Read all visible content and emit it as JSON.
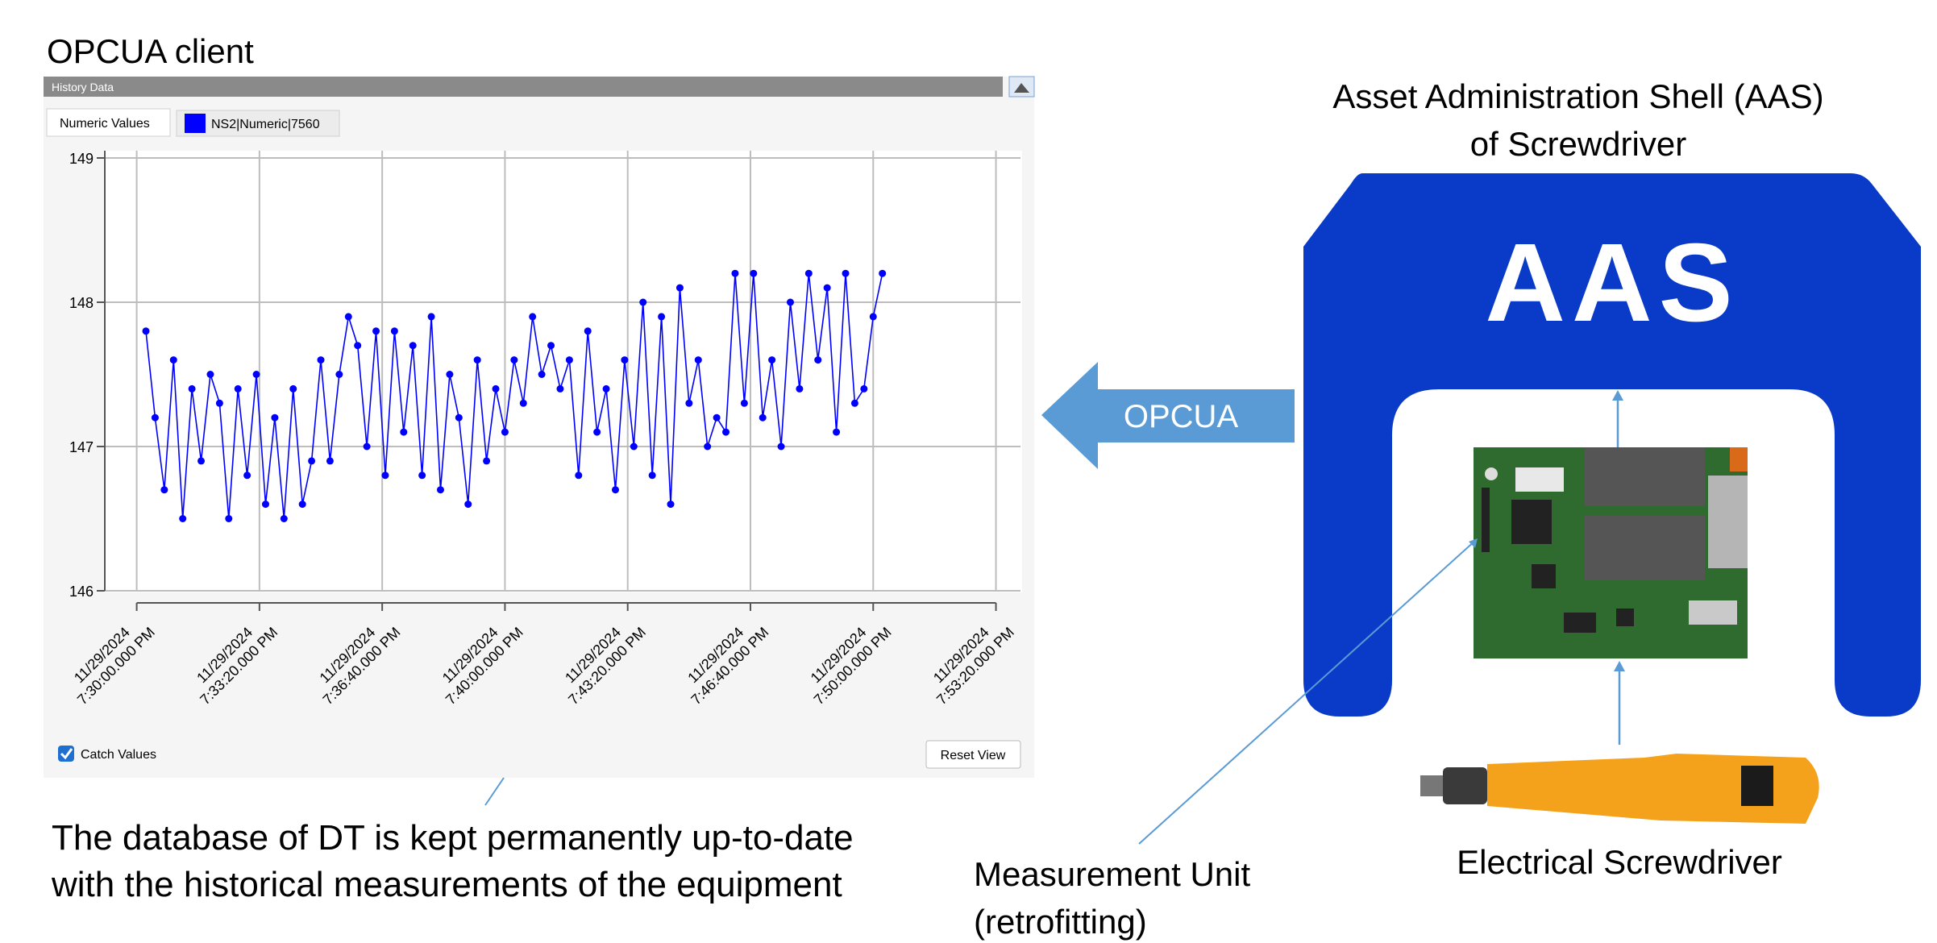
{
  "title": "OPCUA client",
  "history_panel": {
    "header": "History Data",
    "tab": "Numeric Values",
    "checkbox": "Catch Values",
    "button": "Reset View"
  },
  "chart_data": {
    "type": "line",
    "x": [
      "2024-11-29T19:30:15",
      "2024-11-29T19:30:30",
      "2024-11-29T19:30:45",
      "2024-11-29T19:31:00",
      "2024-11-29T19:31:15",
      "2024-11-29T19:31:30",
      "2024-11-29T19:31:45",
      "2024-11-29T19:32:00",
      "2024-11-29T19:32:15",
      "2024-11-29T19:32:30",
      "2024-11-29T19:32:45",
      "2024-11-29T19:33:00",
      "2024-11-29T19:33:15",
      "2024-11-29T19:33:30",
      "2024-11-29T19:33:45",
      "2024-11-29T19:34:00",
      "2024-11-29T19:34:15",
      "2024-11-29T19:34:30",
      "2024-11-29T19:34:45",
      "2024-11-29T19:35:00",
      "2024-11-29T19:35:15",
      "2024-11-29T19:35:30",
      "2024-11-29T19:35:45",
      "2024-11-29T19:36:00",
      "2024-11-29T19:36:15",
      "2024-11-29T19:36:30",
      "2024-11-29T19:36:45",
      "2024-11-29T19:37:00",
      "2024-11-29T19:37:15",
      "2024-11-29T19:37:30",
      "2024-11-29T19:37:45",
      "2024-11-29T19:38:00",
      "2024-11-29T19:38:15",
      "2024-11-29T19:38:30",
      "2024-11-29T19:38:45",
      "2024-11-29T19:39:00",
      "2024-11-29T19:39:15",
      "2024-11-29T19:39:30",
      "2024-11-29T19:39:45",
      "2024-11-29T19:40:00",
      "2024-11-29T19:40:15",
      "2024-11-29T19:40:30",
      "2024-11-29T19:40:45",
      "2024-11-29T19:41:00",
      "2024-11-29T19:41:15",
      "2024-11-29T19:41:30",
      "2024-11-29T19:41:45",
      "2024-11-29T19:42:00",
      "2024-11-29T19:42:15",
      "2024-11-29T19:42:30",
      "2024-11-29T19:42:45",
      "2024-11-29T19:43:00",
      "2024-11-29T19:43:15",
      "2024-11-29T19:43:30",
      "2024-11-29T19:43:45",
      "2024-11-29T19:44:00",
      "2024-11-29T19:44:15",
      "2024-11-29T19:44:30",
      "2024-11-29T19:44:45",
      "2024-11-29T19:45:00",
      "2024-11-29T19:45:15",
      "2024-11-29T19:45:30",
      "2024-11-29T19:45:45",
      "2024-11-29T19:46:00",
      "2024-11-29T19:46:15",
      "2024-11-29T19:46:30",
      "2024-11-29T19:46:45",
      "2024-11-29T19:47:00",
      "2024-11-29T19:47:15",
      "2024-11-29T19:47:30",
      "2024-11-29T19:47:45",
      "2024-11-29T19:48:00",
      "2024-11-29T19:48:15",
      "2024-11-29T19:48:30",
      "2024-11-29T19:48:45",
      "2024-11-29T19:49:00",
      "2024-11-29T19:49:15",
      "2024-11-29T19:49:30",
      "2024-11-29T19:49:45",
      "2024-11-29T19:50:00",
      "2024-11-29T19:50:15"
    ],
    "series": [
      {
        "name": "NS2|Numeric|7560",
        "color": "#0000ff",
        "values": [
          147.8,
          147.2,
          146.7,
          147.6,
          146.5,
          147.4,
          146.9,
          147.5,
          147.3,
          146.5,
          147.4,
          146.8,
          147.5,
          146.6,
          147.2,
          146.5,
          147.4,
          146.6,
          146.9,
          147.6,
          146.9,
          147.5,
          147.9,
          147.7,
          147.0,
          147.8,
          146.8,
          147.8,
          147.1,
          147.7,
          146.8,
          147.9,
          146.7,
          147.5,
          147.2,
          146.6,
          147.6,
          146.9,
          147.4,
          147.1,
          147.6,
          147.3,
          147.9,
          147.5,
          147.7,
          147.4,
          147.6,
          146.8,
          147.8,
          147.1,
          147.4,
          146.7,
          147.6,
          147.0,
          148.0,
          146.8,
          147.9,
          146.6,
          148.1,
          147.3,
          147.6,
          147.0,
          147.2,
          147.1,
          148.2,
          147.3,
          148.2,
          147.2,
          147.6,
          147.0,
          148.0,
          147.4,
          148.2,
          147.6,
          148.1,
          147.1,
          148.2,
          147.3,
          147.4,
          147.9,
          148.2
        ]
      }
    ],
    "xlim": [
      "2024-11-29T19:29:08",
      "2024-11-29T19:54:00"
    ],
    "xticks": [
      {
        "value": "2024-11-29T19:30:00",
        "label": "11/29/2024 7:30:00.000 PM"
      },
      {
        "value": "2024-11-29T19:33:20",
        "label": "11/29/2024 7:33:20.000 PM"
      },
      {
        "value": "2024-11-29T19:36:40",
        "label": "11/29/2024 7:36:40.000 PM"
      },
      {
        "value": "2024-11-29T19:40:00",
        "label": "11/29/2024 7:40:00.000 PM"
      },
      {
        "value": "2024-11-29T19:43:20",
        "label": "11/29/2024 7:43:20.000 PM"
      },
      {
        "value": "2024-11-29T19:46:40",
        "label": "11/29/2024 7:46:40.000 PM"
      },
      {
        "value": "2024-11-29T19:50:00",
        "label": "11/29/2024 7:50:00.000 PM"
      },
      {
        "value": "2024-11-29T19:53:20",
        "label": "11/29/2024 7:53:20.000 PM"
      }
    ],
    "ylim": [
      146,
      149
    ],
    "yticks": [
      146,
      147,
      148,
      149
    ],
    "grid": true
  },
  "caption": [
    "The database of DT is kept permanently up-to-date",
    "with the historical measurements of the equipment"
  ],
  "diagram": {
    "aas_title": [
      "Asset Administration Shell (AAS)",
      "of Screwdriver"
    ],
    "aas_logo": "AAS",
    "arrow_label": "OPCUA",
    "measurement_unit": [
      "Measurement Unit",
      "(retrofitting)"
    ],
    "screwdriver": "Electrical Screwdriver"
  }
}
